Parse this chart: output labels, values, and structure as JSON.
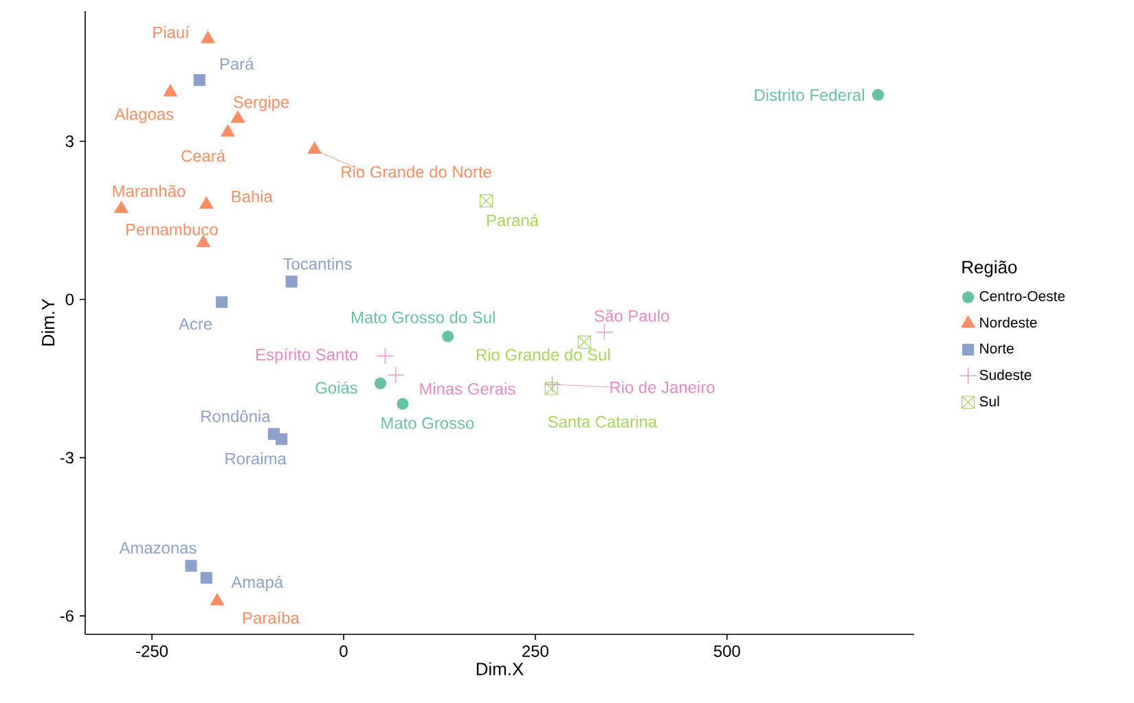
{
  "chart_data": {
    "type": "scatter",
    "xlabel": "Dim.X",
    "ylabel": "Dim.Y",
    "legend_title": "Região",
    "legend": "right",
    "grid": false,
    "xlim": [
      -337,
      744
    ],
    "ylim": [
      -6.35,
      5.47
    ],
    "xticks": [
      -250,
      0,
      250,
      500
    ],
    "yticks": [
      -6,
      -3,
      0,
      3
    ],
    "series": [
      {
        "name": "Centro-Oeste",
        "color": "#66c2a5",
        "marker": "circle",
        "x": [
          697,
          136,
          48,
          77
        ],
        "values": [
          3.88,
          -0.7,
          -1.59,
          -1.98
        ],
        "value_labels": [
          "Distrito Federal",
          "Mato Grosso do Sul",
          "Goiás",
          "Mato Grosso"
        ]
      },
      {
        "name": "Nordeste",
        "color": "#fc8d62",
        "marker": "triangle",
        "x": [
          -177,
          -226,
          -138,
          -151,
          -38,
          -290,
          -179,
          -183,
          -165
        ],
        "values": [
          4.94,
          3.93,
          3.43,
          3.17,
          2.84,
          1.72,
          1.8,
          1.07,
          -5.72
        ],
        "value_labels": [
          "Piauí",
          "Alagoas",
          "Sergipe",
          "Ceará",
          "Rio Grande do Norte",
          "Maranhão",
          "Bahia",
          "Pernambuco",
          "Paraíba"
        ]
      },
      {
        "name": "Norte",
        "color": "#8da0cb",
        "marker": "square",
        "x": [
          -188,
          -68,
          -159,
          -91,
          -81,
          -199,
          -179
        ],
        "values": [
          4.16,
          0.34,
          -0.05,
          -2.55,
          -2.65,
          -5.05,
          -5.28
        ],
        "value_labels": [
          "Pará",
          "Tocantins",
          "Acre",
          "Rondônia",
          "Roraima",
          "Amazonas",
          "Amapá"
        ]
      },
      {
        "name": "Sudeste",
        "color": "#e78ac3",
        "marker": "cross",
        "x": [
          340,
          54,
          68,
          272
        ],
        "values": [
          -0.62,
          -1.07,
          -1.43,
          -1.61
        ],
        "value_labels": [
          "São Paulo",
          "Espírito Santo",
          "Minas Gerais",
          "Rio de Janeiro"
        ]
      },
      {
        "name": "Sul",
        "color": "#a6d854",
        "x": [
          186,
          314,
          271
        ],
        "values": [
          1.87,
          -0.81,
          -1.69
        ],
        "value_labels": [
          "Paraná",
          "Rio Grande do Sul",
          "Santa Catarina"
        ]
      }
    ]
  }
}
